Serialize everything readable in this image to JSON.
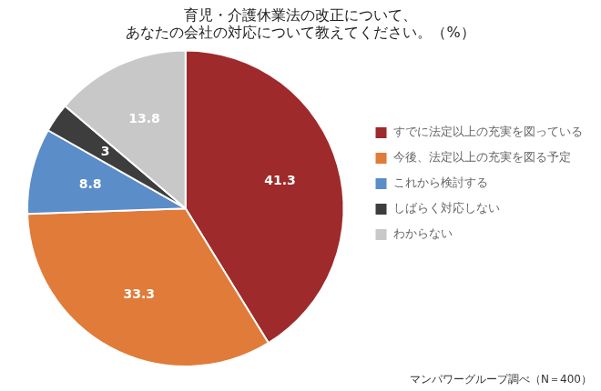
{
  "chart_data": {
    "type": "pie",
    "title": [
      "育児・介護休業法の改正について、",
      "あなたの会社の対応について教えてください。（%）"
    ],
    "categories": [
      "すでに法定以上の充実を図っている",
      "今後、法定以上の充実を図る予定",
      "これから検討する",
      "しばらく対応しない",
      "わからない"
    ],
    "values": [
      41.3,
      33.3,
      8.8,
      3.0,
      13.8
    ],
    "colors": [
      "#9e2a2b",
      "#e07b39",
      "#5b8dc9",
      "#3d3d3d",
      "#c8c8c8"
    ],
    "data_labels": true,
    "legend": "right",
    "annotations": [
      "マンパワーグループ調べ（N＝400）"
    ]
  }
}
